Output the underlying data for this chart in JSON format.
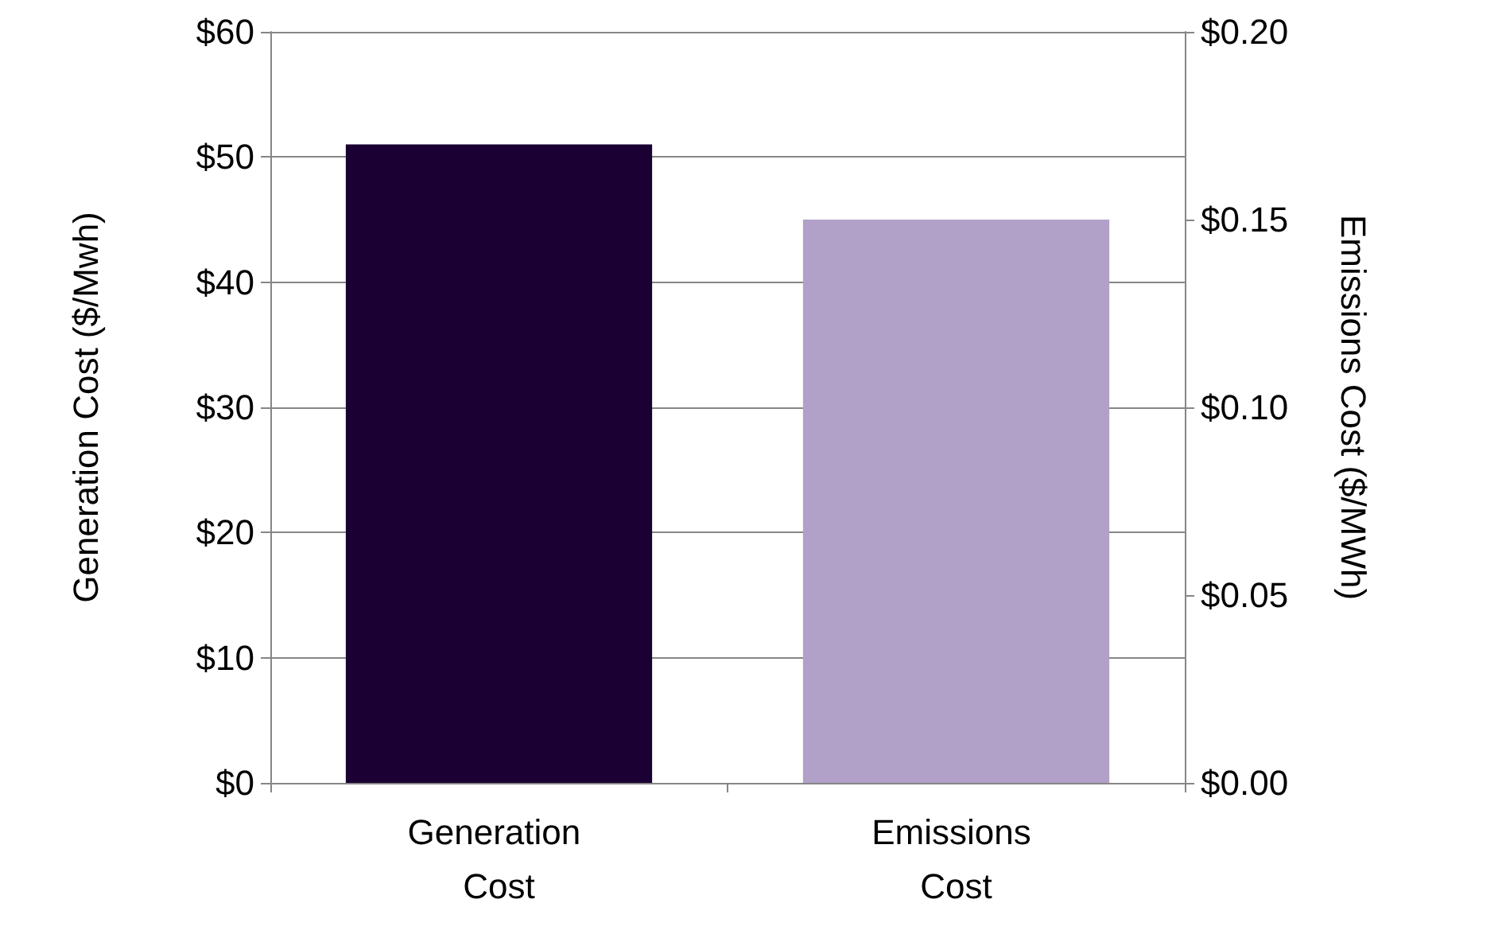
{
  "chart_data": {
    "type": "bar",
    "categories": [
      "Generation Cost",
      "Emissions Cost"
    ],
    "series": [
      {
        "color": "#1a0033",
        "values": [
          51,
          null
        ],
        "axis": "y"
      },
      {
        "color": "#b1a0c7",
        "values": [
          null,
          0.15
        ],
        "axis": "y2"
      }
    ],
    "ylabel": "Generation Cost ($/Mwh)",
    "y2label": "Emissions Cost ($/MWh)",
    "ylim": [
      0,
      60
    ],
    "yticks": [
      {
        "value": 0,
        "label": "$0"
      },
      {
        "value": 10,
        "label": "$10"
      },
      {
        "value": 20,
        "label": "$20"
      },
      {
        "value": 30,
        "label": "$30"
      },
      {
        "value": 40,
        "label": "$40"
      },
      {
        "value": 50,
        "label": "$50"
      },
      {
        "value": 60,
        "label": "$60"
      }
    ],
    "y2lim": [
      0,
      0.2
    ],
    "y2ticks": [
      {
        "value": 0,
        "label": "$0.00"
      },
      {
        "value": 0.05,
        "label": "$0.05"
      },
      {
        "value": 0.1,
        "label": "$0.10"
      },
      {
        "value": 0.15,
        "label": "$0.15"
      },
      {
        "value": 0.2,
        "label": "$0.20"
      }
    ],
    "grid": "y"
  }
}
